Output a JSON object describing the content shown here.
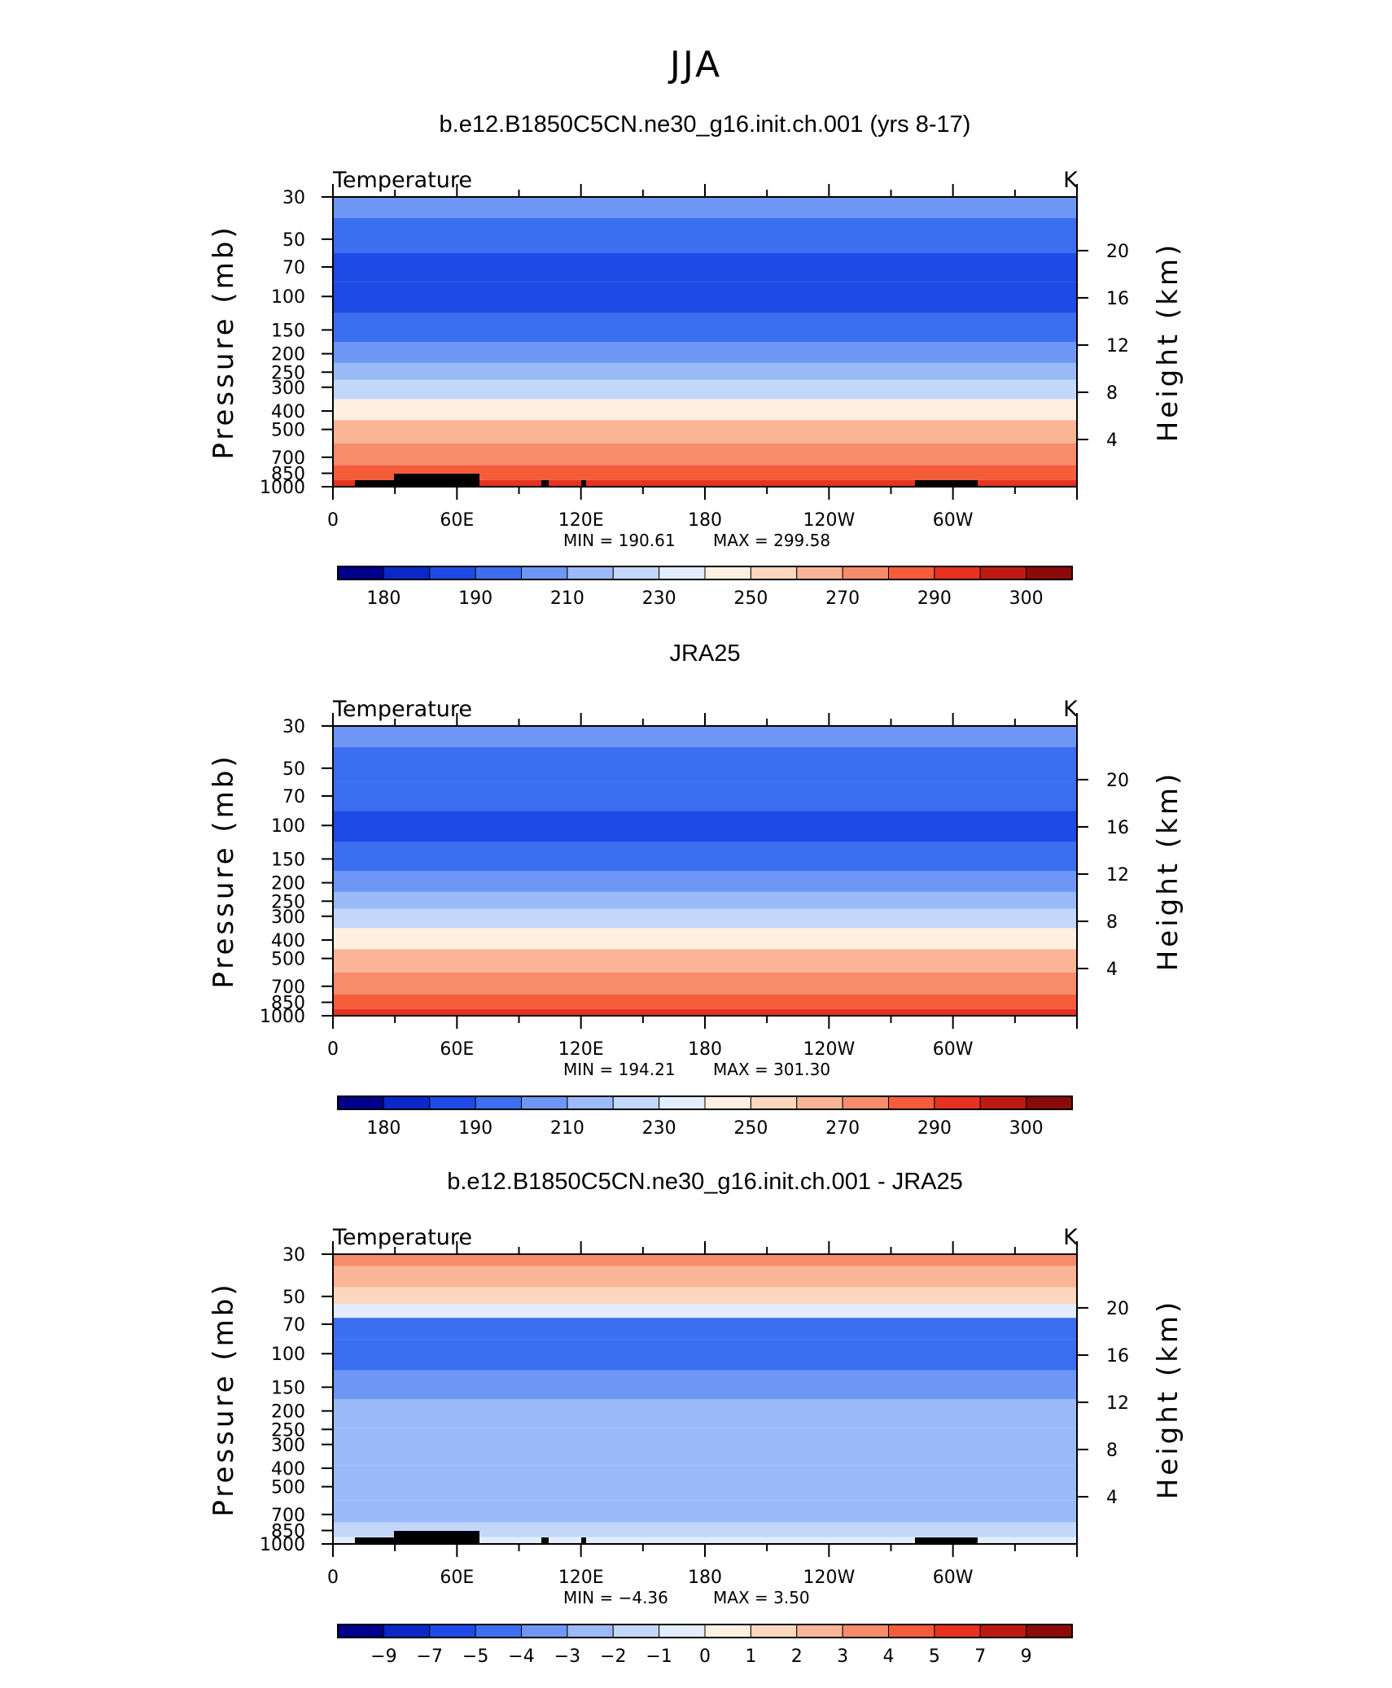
{
  "figure": {
    "title": "JJA"
  },
  "palette": [
    "#00008b",
    "#0a28c8",
    "#1e4be6",
    "#3c6ef0",
    "#6e97f5",
    "#9bbaf8",
    "#c3d7fb",
    "#e3edfd",
    "#fdf0e1",
    "#fbd7bd",
    "#f9b596",
    "#f78c6a",
    "#f55c3a",
    "#e6321e",
    "#be1a12",
    "#8b0a0a"
  ],
  "chart_data": [
    {
      "type": "heatmap",
      "name": "b.e12.B1850C5CN.ne30_g16.init.ch.001 (yrs 8-17)",
      "title": "b.e12.B1850C5CN.ne30_g16.init.ch.001 (yrs 8-17)",
      "left_label": "Temperature",
      "units": "K",
      "ylabel": "Pressure  (mb)",
      "y2label": "Height  (km)",
      "x_ticks": [
        "0",
        "60E",
        "120E",
        "180",
        "120W",
        "60W"
      ],
      "y_ticks": [
        "30",
        "50",
        "70",
        "100",
        "150",
        "200",
        "250",
        "300",
        "400",
        "500",
        "700",
        "850",
        "1000"
      ],
      "height_ticks": [
        "20",
        "16",
        "12",
        "8",
        "4"
      ],
      "min_label": "MIN  =  190.61",
      "max_label": "MAX  =  299.58",
      "colorbar_labels": [
        "180",
        "190",
        "210",
        "230",
        "250",
        "270",
        "290",
        "300"
      ],
      "levels": [
        {
          "p": 30,
          "c": 4
        },
        {
          "p": 50,
          "c": 3
        },
        {
          "p": 70,
          "c": 2
        },
        {
          "p": 100,
          "c": 2
        },
        {
          "p": 150,
          "c": 3
        },
        {
          "p": 200,
          "c": 4
        },
        {
          "p": 250,
          "c": 5
        },
        {
          "p": 300,
          "c": 6
        },
        {
          "p": 400,
          "c": 8
        },
        {
          "p": 500,
          "c": 10
        },
        {
          "p": 700,
          "c": 11
        },
        {
          "p": 850,
          "c": 12
        },
        {
          "p": 1000,
          "c": 13
        }
      ],
      "topography": true
    },
    {
      "type": "heatmap",
      "name": "JRA25",
      "title": "JRA25",
      "left_label": "Temperature",
      "units": "K",
      "ylabel": "Pressure  (mb)",
      "y2label": "Height  (km)",
      "x_ticks": [
        "0",
        "60E",
        "120E",
        "180",
        "120W",
        "60W"
      ],
      "y_ticks": [
        "30",
        "50",
        "70",
        "100",
        "150",
        "200",
        "250",
        "300",
        "400",
        "500",
        "700",
        "850",
        "1000"
      ],
      "height_ticks": [
        "20",
        "16",
        "12",
        "8",
        "4"
      ],
      "min_label": "MIN  =  194.21",
      "max_label": "MAX  =  301.30",
      "colorbar_labels": [
        "180",
        "190",
        "210",
        "230",
        "250",
        "270",
        "290",
        "300"
      ],
      "levels": [
        {
          "p": 30,
          "c": 4
        },
        {
          "p": 50,
          "c": 3
        },
        {
          "p": 70,
          "c": 3
        },
        {
          "p": 100,
          "c": 2
        },
        {
          "p": 150,
          "c": 3
        },
        {
          "p": 200,
          "c": 4
        },
        {
          "p": 250,
          "c": 5
        },
        {
          "p": 300,
          "c": 6
        },
        {
          "p": 400,
          "c": 8
        },
        {
          "p": 500,
          "c": 10
        },
        {
          "p": 700,
          "c": 11
        },
        {
          "p": 850,
          "c": 12
        },
        {
          "p": 1000,
          "c": 13
        }
      ],
      "topography": false
    },
    {
      "type": "heatmap",
      "name": "b.e12.B1850C5CN.ne30_g16.init.ch.001 - JRA25",
      "title": "b.e12.B1850C5CN.ne30_g16.init.ch.001 - JRA25",
      "left_label": "Temperature",
      "units": "K",
      "ylabel": "Pressure  (mb)",
      "y2label": "Height  (km)",
      "x_ticks": [
        "0",
        "60E",
        "120E",
        "180",
        "120W",
        "60W"
      ],
      "y_ticks": [
        "30",
        "50",
        "70",
        "100",
        "150",
        "200",
        "250",
        "300",
        "400",
        "500",
        "700",
        "850",
        "1000"
      ],
      "height_ticks": [
        "20",
        "16",
        "12",
        "8",
        "4"
      ],
      "min_label": "MIN  =    −4.36",
      "max_label": "MAX  =      3.50",
      "colorbar_labels": [
        "−9",
        "−7",
        "−5",
        "−4",
        "−3",
        "−2",
        "−1",
        "0",
        "1",
        "2",
        "3",
        "4",
        "5",
        "7",
        "9"
      ],
      "levels": [
        {
          "p": 30,
          "c": 11
        },
        {
          "p": 40,
          "c": 10
        },
        {
          "p": 50,
          "c": 9
        },
        {
          "p": 60,
          "c": 7
        },
        {
          "p": 70,
          "c": 3
        },
        {
          "p": 100,
          "c": 3
        },
        {
          "p": 150,
          "c": 4
        },
        {
          "p": 200,
          "c": 5
        },
        {
          "p": 300,
          "c": 5
        },
        {
          "p": 500,
          "c": 5
        },
        {
          "p": 700,
          "c": 5
        },
        {
          "p": 850,
          "c": 6
        },
        {
          "p": 1000,
          "c": 7
        }
      ],
      "topography": true
    }
  ]
}
